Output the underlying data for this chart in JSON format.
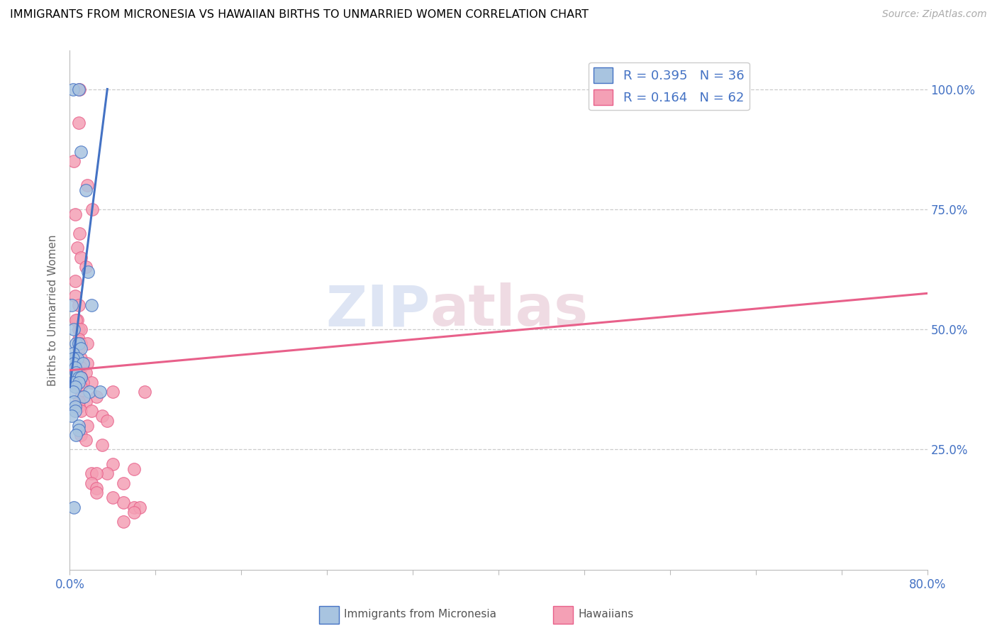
{
  "title": "IMMIGRANTS FROM MICRONESIA VS HAWAIIAN BIRTHS TO UNMARRIED WOMEN CORRELATION CHART",
  "source": "Source: ZipAtlas.com",
  "ylabel": "Births to Unmarried Women",
  "legend_label1": "Immigrants from Micronesia",
  "legend_label2": "Hawaiians",
  "legend_r1": "R = 0.395",
  "legend_n1": "N = 36",
  "legend_r2": "R = 0.164",
  "legend_n2": "N = 62",
  "ytick_labels": [
    "25.0%",
    "50.0%",
    "75.0%",
    "100.0%"
  ],
  "ytick_values": [
    25.0,
    50.0,
    75.0,
    100.0
  ],
  "color_blue": "#a8c4e0",
  "color_pink": "#f4a0b5",
  "line_blue": "#4472c4",
  "line_pink": "#e8608a",
  "watermark_zip": "ZIP",
  "watermark_atlas": "atlas",
  "blue_scatter_x": [
    0.3,
    0.8,
    1.0,
    1.5,
    1.7,
    2.0,
    0.2,
    0.4,
    0.6,
    0.8,
    1.0,
    0.3,
    0.5,
    0.7,
    0.3,
    0.4,
    1.2,
    0.5,
    0.6,
    0.8,
    1.0,
    0.3,
    0.8,
    0.5,
    1.8,
    2.8,
    0.3,
    1.3,
    0.4,
    0.5,
    0.5,
    0.2,
    0.8,
    0.8,
    0.6,
    0.4
  ],
  "blue_scatter_y": [
    100.0,
    100.0,
    87.0,
    79.0,
    62.0,
    55.0,
    55.0,
    50.0,
    47.0,
    47.0,
    46.0,
    45.0,
    44.0,
    44.0,
    44.0,
    43.0,
    43.0,
    42.0,
    41.0,
    40.0,
    40.0,
    39.0,
    39.0,
    38.0,
    37.0,
    37.0,
    37.0,
    36.0,
    35.0,
    34.0,
    33.0,
    32.0,
    30.0,
    29.0,
    28.0,
    13.0
  ],
  "pink_scatter_x": [
    0.9,
    0.8,
    0.4,
    1.6,
    2.1,
    0.5,
    0.9,
    0.7,
    1.0,
    1.5,
    0.5,
    0.5,
    0.8,
    0.7,
    0.6,
    0.8,
    1.0,
    0.8,
    1.0,
    1.6,
    0.8,
    1.0,
    1.6,
    1.0,
    0.9,
    1.5,
    1.0,
    1.0,
    1.0,
    2.0,
    1.2,
    1.0,
    4.0,
    1.0,
    2.5,
    1.5,
    0.8,
    0.8,
    1.0,
    2.0,
    3.0,
    3.5,
    1.6,
    1.0,
    1.5,
    3.0,
    4.0,
    6.0,
    3.5,
    2.0,
    2.5,
    5.0,
    2.0,
    2.5,
    2.5,
    4.0,
    5.0,
    6.0,
    6.5,
    6.0,
    5.0,
    7.0
  ],
  "pink_scatter_y": [
    100.0,
    93.0,
    85.0,
    80.0,
    75.0,
    74.0,
    70.0,
    67.0,
    65.0,
    63.0,
    60.0,
    57.0,
    55.0,
    52.0,
    52.0,
    50.0,
    50.0,
    48.0,
    47.0,
    47.0,
    46.0,
    44.0,
    43.0,
    42.0,
    41.0,
    41.0,
    40.0,
    40.0,
    40.0,
    39.0,
    39.0,
    38.0,
    37.0,
    36.0,
    36.0,
    35.0,
    35.0,
    34.0,
    33.0,
    33.0,
    32.0,
    31.0,
    30.0,
    28.0,
    27.0,
    26.0,
    22.0,
    21.0,
    20.0,
    20.0,
    20.0,
    18.0,
    18.0,
    17.0,
    16.0,
    15.0,
    14.0,
    13.0,
    13.0,
    12.0,
    10.0,
    37.0
  ],
  "blue_line_x": [
    0.0,
    3.5
  ],
  "blue_line_y": [
    38.0,
    100.0
  ],
  "pink_line_x": [
    0.0,
    80.0
  ],
  "pink_line_y": [
    41.5,
    57.5
  ],
  "xlim": [
    0.0,
    80.0
  ],
  "ylim": [
    0.0,
    108.0
  ],
  "xtick_positions": [
    0.0,
    8.0,
    16.0,
    24.0,
    32.0,
    40.0,
    48.0,
    56.0,
    64.0,
    72.0,
    80.0
  ],
  "xtick_labels_show": {
    "0": "0.0%",
    "10": "80.0%"
  }
}
